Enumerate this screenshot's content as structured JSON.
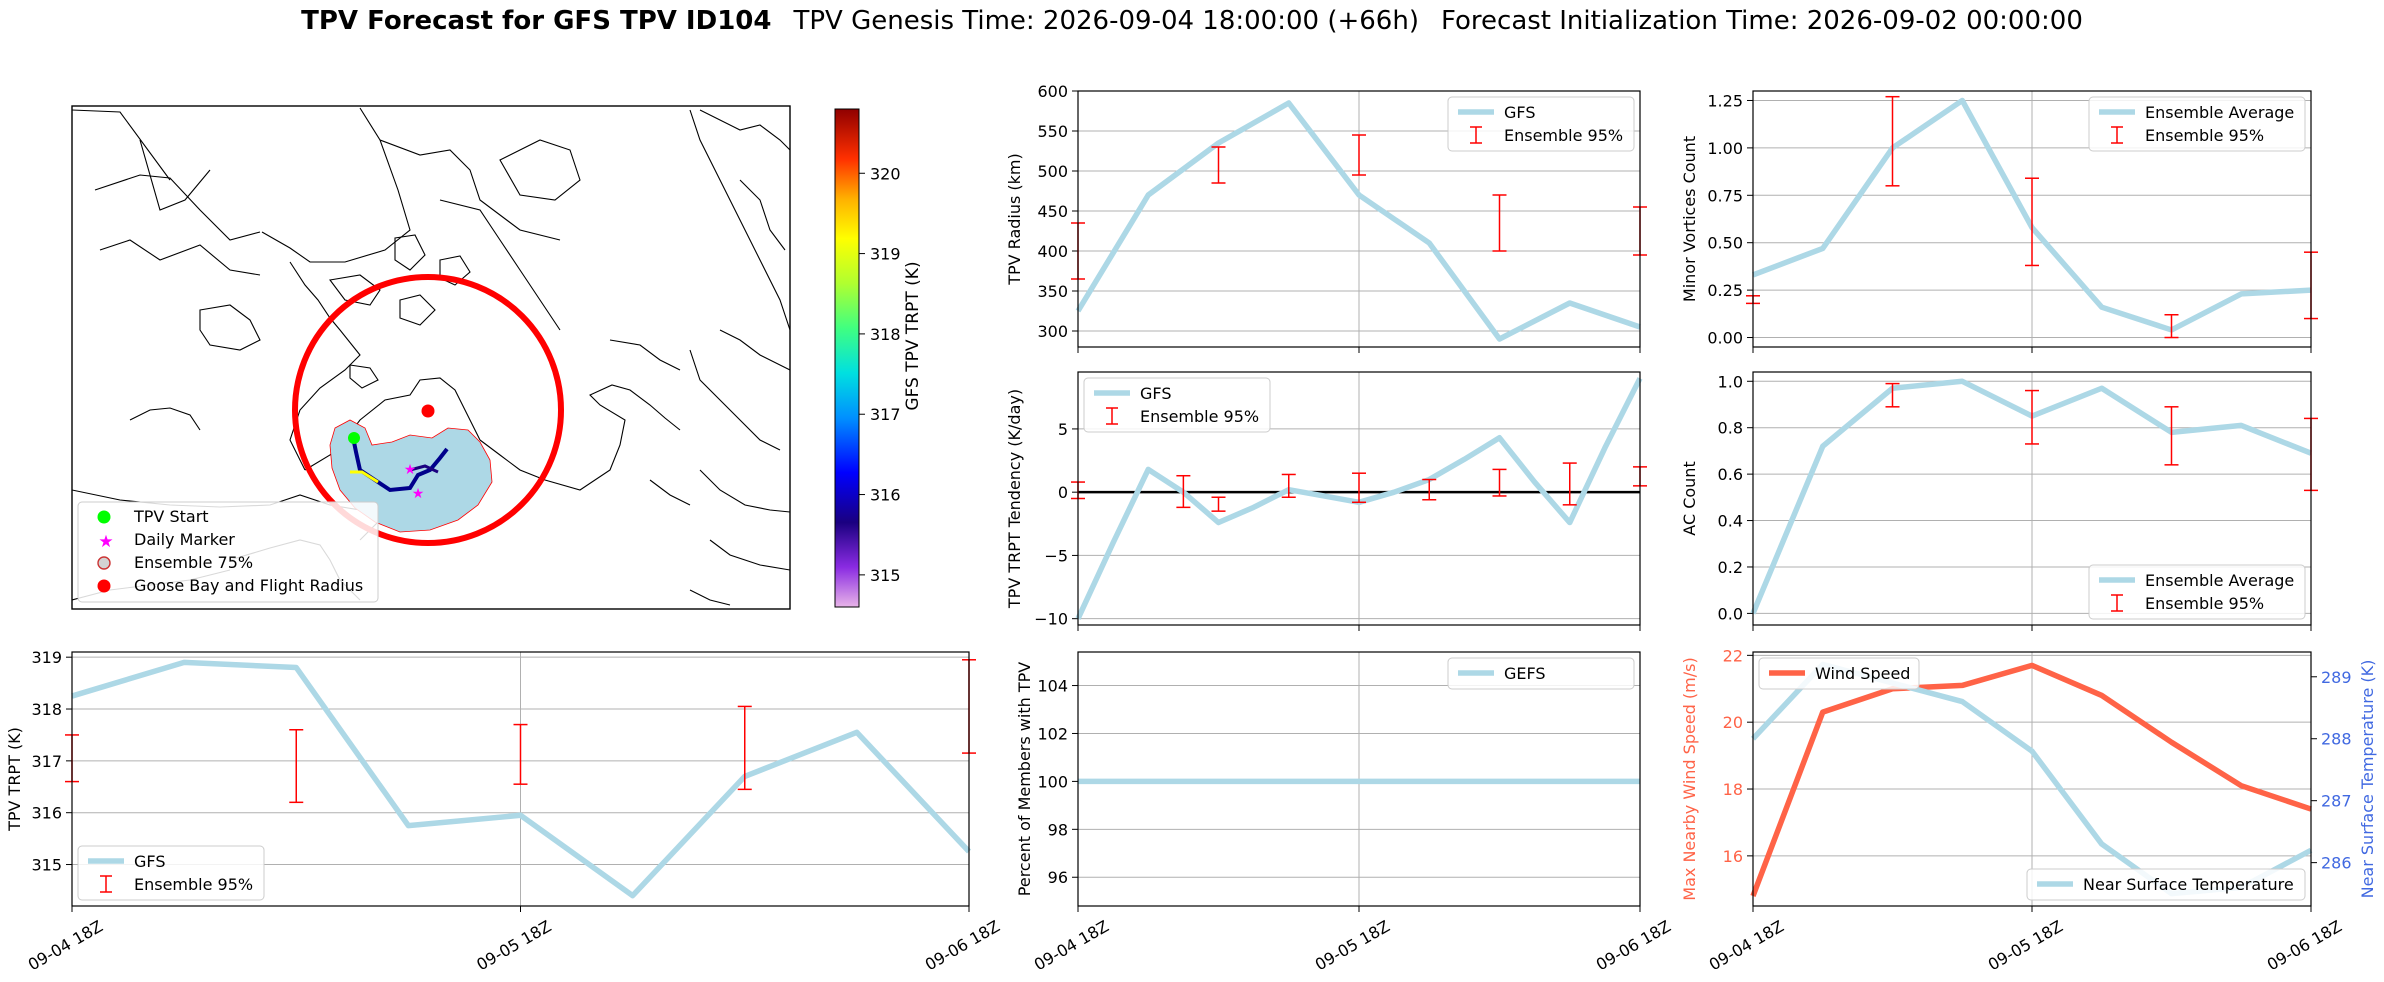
{
  "figure": {
    "title_bold": "TPV Forecast for GFS TPV ID104",
    "title_genesis": "TPV Genesis Time: 2026-09-04 18:00:00 (+66h)",
    "title_init": "Forecast Initialization Time: 2026-09-02 00:00:00"
  },
  "colors": {
    "gfs_line": "#add8e6",
    "error_bar": "#ff0000",
    "wind": "#ff6347",
    "temp_axis": "#4169e1",
    "circle": "#ff0000",
    "ensemble_fill": "#add8e6",
    "start_marker": "#00ff00",
    "daily_marker": "#ff00ff",
    "goose_bay": "#ff0000"
  },
  "map": {
    "legend": [
      "TPV Start",
      "Daily Marker",
      "Ensemble 75%",
      "Goose Bay and Flight Radius"
    ],
    "colorbar": {
      "label": "GFS TPV TRPT (K)",
      "ticks": [
        "315",
        "316",
        "317",
        "318",
        "319",
        "320"
      ],
      "range": [
        314.6,
        320.8
      ]
    }
  },
  "chart_data": [
    {
      "id": "radius",
      "type": "line",
      "ylabel": "TPV Radius (km)",
      "ylim": [
        280,
        600
      ],
      "yticks": [
        300,
        350,
        400,
        450,
        500,
        550,
        600
      ],
      "ytick_labels": [
        "300",
        "350",
        "400",
        "450",
        "500",
        "550",
        "600"
      ],
      "x_hours": [
        0,
        6,
        12,
        18,
        24,
        30,
        36,
        42,
        48
      ],
      "series": [
        {
          "name": "GFS",
          "values": [
            325,
            470,
            535,
            585,
            470,
            410,
            290,
            335,
            305
          ]
        }
      ],
      "errorbars": {
        "name": "Ensemble 95%",
        "x": [
          0,
          6,
          12,
          18,
          24,
          30,
          36,
          42,
          48
        ],
        "low": [
          365,
          null,
          485,
          null,
          495,
          null,
          400,
          null,
          395
        ],
        "high": [
          435,
          null,
          530,
          null,
          545,
          null,
          470,
          null,
          455
        ]
      },
      "show_x_labels": false,
      "legend_loc": "upper right"
    },
    {
      "id": "minor",
      "type": "line",
      "ylabel": "Minor Vortices Count",
      "ylim": [
        -0.05,
        1.3
      ],
      "yticks": [
        0,
        0.25,
        0.5,
        0.75,
        1.0,
        1.25
      ],
      "ytick_labels": [
        "0.00",
        "0.25",
        "0.50",
        "0.75",
        "1.00",
        "1.25"
      ],
      "x_hours": [
        0,
        6,
        12,
        18,
        24,
        30,
        36,
        42,
        48
      ],
      "series": [
        {
          "name": "Ensemble Average",
          "values": [
            0.33,
            0.47,
            1.0,
            1.25,
            0.58,
            0.16,
            0.04,
            0.23,
            0.25
          ]
        }
      ],
      "errorbars": {
        "name": "Ensemble 95%",
        "x": [
          0,
          6,
          12,
          18,
          24,
          30,
          36,
          42,
          48
        ],
        "low": [
          0.18,
          null,
          0.8,
          null,
          0.38,
          null,
          0.0,
          null,
          0.1
        ],
        "high": [
          0.22,
          null,
          1.27,
          null,
          0.84,
          null,
          0.12,
          null,
          0.45
        ]
      },
      "show_x_labels": false,
      "legend_loc": "upper right"
    },
    {
      "id": "tendency",
      "type": "line",
      "ylabel": "TPV TRPT Tendency (K/day)",
      "ylim": [
        -10.5,
        9.5
      ],
      "yticks": [
        -10,
        -5,
        0,
        5
      ],
      "ytick_labels": [
        "−10",
        "−5",
        "0",
        "5"
      ],
      "x_hours": [
        0,
        3,
        6,
        9,
        12,
        15,
        18,
        21,
        24,
        27,
        30,
        33,
        36,
        39,
        42,
        45,
        48
      ],
      "series": [
        {
          "name": "GFS",
          "values": [
            -10,
            -4,
            1.8,
            0,
            -2.4,
            -1.2,
            0.2,
            -0.3,
            -0.8,
            0,
            1.0,
            2.6,
            4.3,
            0.8,
            -2.4,
            3.5,
            9.0
          ]
        }
      ],
      "errorbars": {
        "name": "Ensemble 95%",
        "x": [
          0,
          6,
          9,
          12,
          18,
          24,
          27,
          30,
          36,
          42,
          48
        ],
        "low": [
          -0.5,
          null,
          -1.2,
          -1.5,
          -0.4,
          -0.8,
          null,
          -0.6,
          -0.3,
          -1.0,
          0.5
        ],
        "high": [
          0.8,
          null,
          1.3,
          -0.4,
          1.4,
          1.5,
          null,
          1.0,
          1.8,
          2.3,
          2.0
        ]
      },
      "hline": 0,
      "show_x_labels": false,
      "legend_loc": "upper left"
    },
    {
      "id": "ac",
      "type": "line",
      "ylabel": "AC Count",
      "ylim": [
        -0.05,
        1.04
      ],
      "yticks": [
        0,
        0.2,
        0.4,
        0.6,
        0.8,
        1.0
      ],
      "ytick_labels": [
        "0.0",
        "0.2",
        "0.4",
        "0.6",
        "0.8",
        "1.0"
      ],
      "x_hours": [
        0,
        6,
        12,
        18,
        24,
        30,
        36,
        42,
        48
      ],
      "series": [
        {
          "name": "Ensemble Average",
          "values": [
            0.0,
            0.72,
            0.97,
            1.0,
            0.85,
            0.97,
            0.78,
            0.81,
            0.69
          ]
        }
      ],
      "errorbars": {
        "name": "Ensemble 95%",
        "x": [
          0,
          6,
          12,
          18,
          24,
          30,
          36,
          42,
          48
        ],
        "low": [
          null,
          null,
          0.89,
          null,
          0.73,
          null,
          0.64,
          null,
          0.53
        ],
        "high": [
          null,
          null,
          0.99,
          null,
          0.96,
          null,
          0.89,
          null,
          0.84
        ]
      },
      "show_x_labels": false,
      "legend_loc": "lower right"
    },
    {
      "id": "trpt",
      "type": "line",
      "ylabel": "TPV TRPT (K)",
      "ylim": [
        314.2,
        319.1
      ],
      "yticks": [
        315,
        316,
        317,
        318,
        319
      ],
      "ytick_labels": [
        "315",
        "316",
        "317",
        "318",
        "319"
      ],
      "x_hours": [
        0,
        6,
        12,
        18,
        24,
        30,
        36,
        42,
        48
      ],
      "series": [
        {
          "name": "GFS",
          "values": [
            318.25,
            318.9,
            318.8,
            315.75,
            315.95,
            314.4,
            316.7,
            317.55,
            315.25
          ]
        }
      ],
      "errorbars": {
        "name": "Ensemble 95%",
        "x": [
          0,
          12,
          24,
          36,
          48
        ],
        "low": [
          316.6,
          316.2,
          316.55,
          316.45,
          317.15
        ],
        "high": [
          317.5,
          317.6,
          317.7,
          318.05,
          318.95
        ]
      },
      "x_tick_labels": [
        "09-04 18Z",
        "09-05 18Z",
        "09-06 18Z"
      ],
      "show_x_labels": true,
      "legend_loc": "lower left"
    },
    {
      "id": "percent",
      "type": "line",
      "ylabel": "Percent of Members with TPV",
      "ylim": [
        94.8,
        105.4
      ],
      "yticks": [
        96,
        98,
        100,
        102,
        104
      ],
      "ytick_labels": [
        "96",
        "98",
        "100",
        "102",
        "104"
      ],
      "x_hours": [
        0,
        48
      ],
      "series": [
        {
          "name": "GEFS",
          "values": [
            100,
            100
          ]
        }
      ],
      "x_tick_labels": [
        "09-04 18Z",
        "09-05 18Z",
        "09-06 18Z"
      ],
      "show_x_labels": true,
      "legend_loc": "upper right"
    },
    {
      "id": "wind_temp",
      "type": "line",
      "ylabel": "Max Nearby Wind Speed (m/s)",
      "ylabel_right": "Near Surface Temperature (K)",
      "ylim": [
        14.5,
        22.1
      ],
      "yticks": [
        16,
        18,
        20,
        22
      ],
      "ytick_labels": [
        "16",
        "18",
        "20",
        "22"
      ],
      "ylim_right": [
        285.3,
        289.4
      ],
      "yticks_right": [
        286,
        287,
        288,
        289
      ],
      "ytick_labels_right": [
        "286",
        "287",
        "288",
        "289"
      ],
      "x_hours": [
        0,
        6,
        12,
        18,
        24,
        30,
        36,
        42,
        48
      ],
      "series": [
        {
          "name": "Wind Speed",
          "axis": "left",
          "values": [
            14.8,
            20.3,
            21.0,
            21.1,
            21.7,
            20.8,
            19.4,
            18.1,
            17.4
          ]
        },
        {
          "name": "Near Surface Temperature",
          "axis": "right",
          "values": [
            288.0,
            289.2,
            288.9,
            288.6,
            287.8,
            286.3,
            285.5,
            285.6,
            286.2
          ]
        }
      ],
      "x_tick_labels": [
        "09-04 18Z",
        "09-05 18Z",
        "09-06 18Z"
      ],
      "show_x_labels": true
    }
  ]
}
